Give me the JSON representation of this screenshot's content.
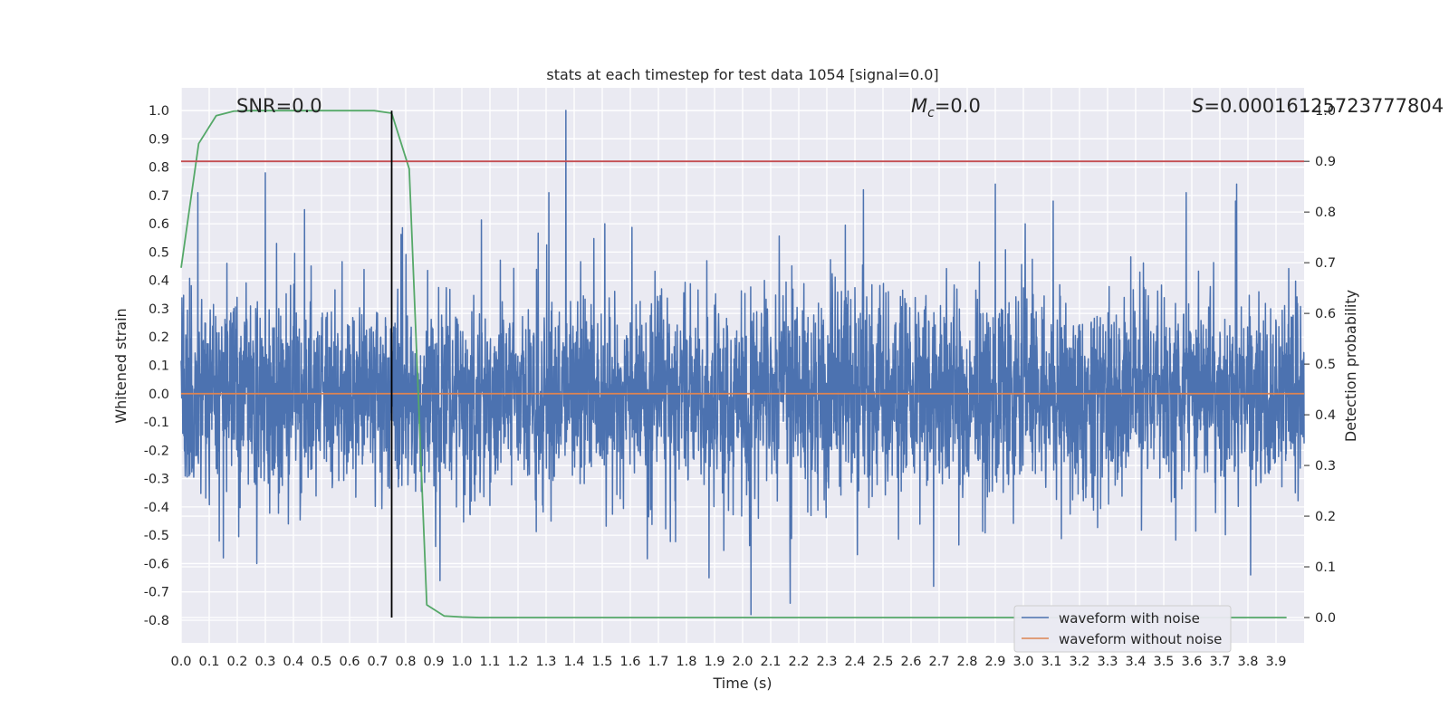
{
  "chart_data": {
    "type": "line",
    "title": "stats at each timestep for test data 1054 [signal=0.0]",
    "xlabel": "Time (s)",
    "ylabel": "Whitened strain",
    "y2label": "Detection probability",
    "xlim": [
      0.0,
      4.0
    ],
    "ylim": [
      -0.88,
      1.08
    ],
    "y2lim": [
      -0.05,
      1.045
    ],
    "grid": true,
    "background": "#eaeaf2",
    "xticks": [
      "0.0",
      "0.1",
      "0.2",
      "0.3",
      "0.4",
      "0.5",
      "0.6",
      "0.7",
      "0.8",
      "0.9",
      "1.0",
      "1.1",
      "1.2",
      "1.3",
      "1.4",
      "1.5",
      "1.6",
      "1.7",
      "1.8",
      "1.9",
      "2.0",
      "2.1",
      "2.2",
      "2.3",
      "2.4",
      "2.5",
      "2.6",
      "2.7",
      "2.8",
      "2.9",
      "3.0",
      "3.1",
      "3.2",
      "3.3",
      "3.4",
      "3.5",
      "3.6",
      "3.7",
      "3.8",
      "3.9"
    ],
    "yticks": [
      "-0.8",
      "-0.7",
      "-0.6",
      "-0.5",
      "-0.4",
      "-0.3",
      "-0.2",
      "-0.1",
      "0.0",
      "0.1",
      "0.2",
      "0.3",
      "0.4",
      "0.5",
      "0.6",
      "0.7",
      "0.8",
      "0.9",
      "1.0"
    ],
    "y2ticks": [
      "0.0",
      "0.1",
      "0.2",
      "0.3",
      "0.4",
      "0.5",
      "0.6",
      "0.7",
      "0.8",
      "0.9",
      "1.0"
    ],
    "annotations": {
      "snr": "SNR=0.0",
      "mc_symbol": "M",
      "mc_sub": "c",
      "mc_value": "=0.0",
      "s_symbol": "S",
      "s_value": "=0.00016125723777804"
    },
    "series": [
      {
        "name": "waveform with noise",
        "color": "#4c72b0",
        "axis": "left",
        "kind": "noise",
        "num_points": 4096,
        "approx_range": [
          -0.78,
          1.0
        ],
        "notable_peaks": [
          {
            "x": 0.06,
            "y": 0.71
          },
          {
            "x": 0.3,
            "y": 0.78
          },
          {
            "x": 0.44,
            "y": 0.65
          },
          {
            "x": 1.37,
            "y": 1.0
          },
          {
            "x": 1.31,
            "y": 0.71
          },
          {
            "x": 2.03,
            "y": -0.78
          },
          {
            "x": 2.9,
            "y": 0.74
          },
          {
            "x": 2.43,
            "y": 0.72
          },
          {
            "x": 0.15,
            "y": -0.58
          },
          {
            "x": 0.27,
            "y": -0.6
          },
          {
            "x": 1.88,
            "y": -0.65
          },
          {
            "x": 2.68,
            "y": -0.68
          },
          {
            "x": 3.76,
            "y": 0.74
          },
          {
            "x": 3.58,
            "y": 0.71
          },
          {
            "x": 3.81,
            "y": -0.64
          }
        ]
      },
      {
        "name": "waveform without noise",
        "color": "#dd8452",
        "axis": "left",
        "x": [
          0.0,
          4.0
        ],
        "y": [
          0.0,
          0.0
        ]
      },
      {
        "name": "detection probability",
        "color": "#55a868",
        "axis": "right",
        "x": [
          0.0,
          0.0625,
          0.125,
          0.1875,
          0.25,
          0.3125,
          0.375,
          0.4375,
          0.5,
          0.5625,
          0.625,
          0.6875,
          0.75,
          0.8125,
          0.875,
          0.9375,
          1.0,
          1.0625,
          1.125,
          1.25,
          1.5,
          2.0,
          2.5,
          3.0,
          3.5,
          3.9375
        ],
        "y": [
          0.69,
          0.935,
          0.99,
          0.999,
          1.0,
          1.0,
          1.0,
          1.0,
          1.0,
          1.0,
          1.0,
          1.0,
          0.995,
          0.885,
          0.025,
          0.003,
          0.001,
          0.0,
          0.0,
          0.0,
          0.0,
          0.0,
          0.0,
          0.0,
          0.0,
          0.0
        ]
      },
      {
        "name": "threshold",
        "color": "#c44e52",
        "axis": "right",
        "x": [
          0.0,
          4.0
        ],
        "y": [
          0.9,
          0.9
        ]
      },
      {
        "name": "marker",
        "color": "#000000",
        "axis": "right",
        "x": [
          0.75,
          0.75
        ],
        "y": [
          0.0,
          1.0
        ]
      }
    ],
    "legend": {
      "placement": "lower-right",
      "entries": [
        {
          "label": "waveform with noise",
          "color": "#4c72b0"
        },
        {
          "label": "waveform without noise",
          "color": "#dd8452"
        }
      ]
    }
  }
}
